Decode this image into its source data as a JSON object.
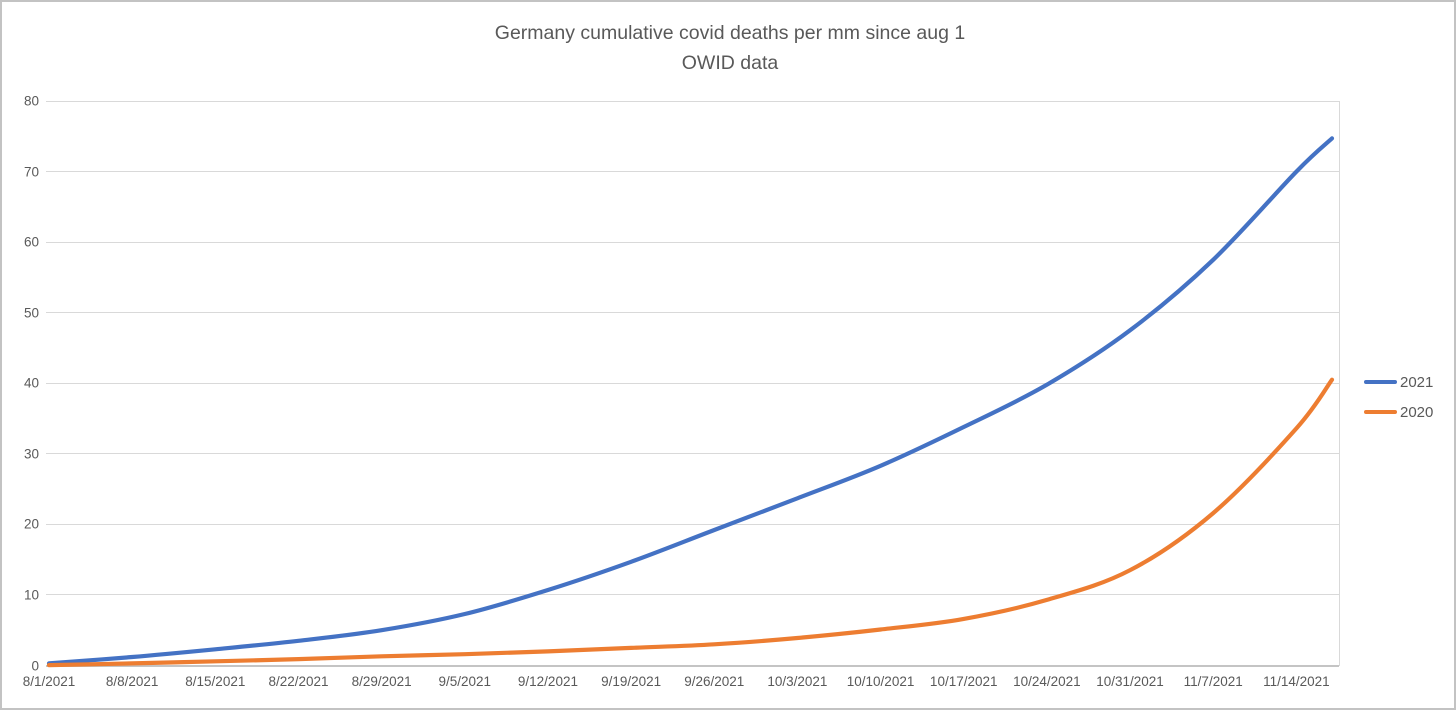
{
  "window": {
    "background": "#ffffff",
    "border_color": "#c3c3c3"
  },
  "text_color": "#595959",
  "gridline_color": "#d9d9d9",
  "axis_line_color": "#c4c4c4",
  "chart_data": {
    "type": "line",
    "title": "Germany cumulative covid deaths per mm since aug 1",
    "subtitle": "OWID data",
    "xlabel": "",
    "ylabel": "",
    "ylim": [
      0,
      80
    ],
    "y_ticks": [
      0,
      10,
      20,
      30,
      40,
      50,
      60,
      70,
      80
    ],
    "grid": "horizontal",
    "legend_position": "right-middle",
    "x_tick_labels": [
      "8/1/2021",
      "8/8/2021",
      "8/15/2021",
      "8/22/2021",
      "8/29/2021",
      "9/5/2021",
      "9/12/2021",
      "9/19/2021",
      "9/26/2021",
      "10/3/2021",
      "10/10/2021",
      "10/17/2021",
      "10/24/2021",
      "10/31/2021",
      "11/7/2021",
      "11/14/2021"
    ],
    "x_days": [
      0,
      7,
      14,
      21,
      28,
      35,
      42,
      49,
      56,
      63,
      70,
      77,
      84,
      91,
      98,
      105,
      108
    ],
    "series": [
      {
        "name": "2021",
        "color": "#4472C4",
        "values": [
          0.3,
          1.2,
          2.3,
          3.5,
          5.0,
          7.3,
          10.7,
          14.7,
          19.2,
          23.7,
          28.3,
          33.8,
          39.8,
          47.5,
          57.5,
          70.0,
          74.7
        ]
      },
      {
        "name": "2020",
        "color": "#ED7D31",
        "values": [
          0.05,
          0.3,
          0.6,
          0.9,
          1.3,
          1.6,
          2.0,
          2.5,
          3.0,
          3.9,
          5.1,
          6.6,
          9.3,
          13.5,
          21.6,
          33.6,
          40.5
        ]
      }
    ]
  }
}
